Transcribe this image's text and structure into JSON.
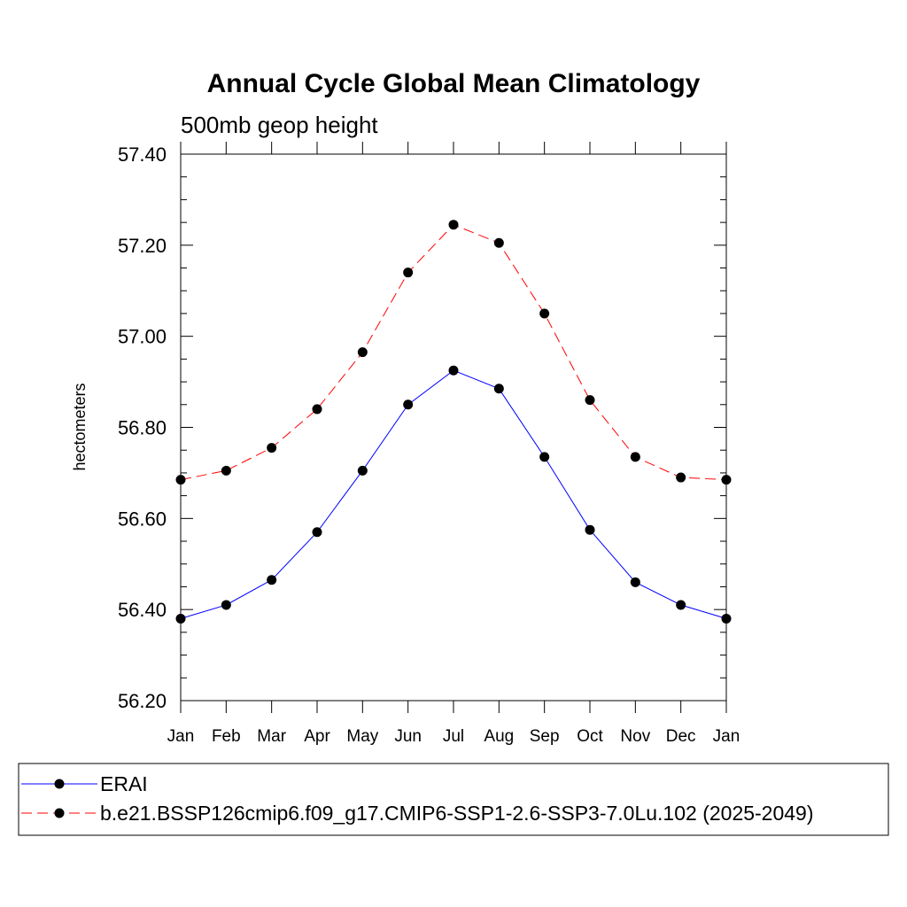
{
  "chart_data": {
    "type": "line",
    "title": "Annual Cycle Global Mean Climatology",
    "subtitle": "500mb geop height",
    "ylabel": "hectometers",
    "xlabel": "",
    "ylim": [
      56.2,
      57.4
    ],
    "yticks": [
      "56.20",
      "56.40",
      "56.60",
      "56.80",
      "57.00",
      "57.20",
      "57.40"
    ],
    "categories": [
      "Jan",
      "Feb",
      "Mar",
      "Apr",
      "May",
      "Jun",
      "Jul",
      "Aug",
      "Sep",
      "Oct",
      "Nov",
      "Dec",
      "Jan"
    ],
    "grid": false,
    "legend_position": "bottom",
    "series": [
      {
        "name": "ERAI",
        "color": "#0000ff",
        "dash": "solid",
        "values": [
          56.38,
          56.41,
          56.465,
          56.57,
          56.705,
          56.85,
          56.925,
          56.885,
          56.735,
          56.575,
          56.46,
          56.41,
          56.38
        ]
      },
      {
        "name": "b.e21.BSSP126cmip6.f09_g17.CMIP6-SSP1-2.6-SSP3-7.0Lu.102 (2025-2049)",
        "color": "#ff0000",
        "dash": "dashed",
        "values": [
          56.685,
          56.705,
          56.755,
          56.84,
          56.965,
          57.14,
          57.245,
          57.205,
          57.05,
          56.86,
          56.735,
          56.69,
          56.685
        ]
      }
    ]
  }
}
